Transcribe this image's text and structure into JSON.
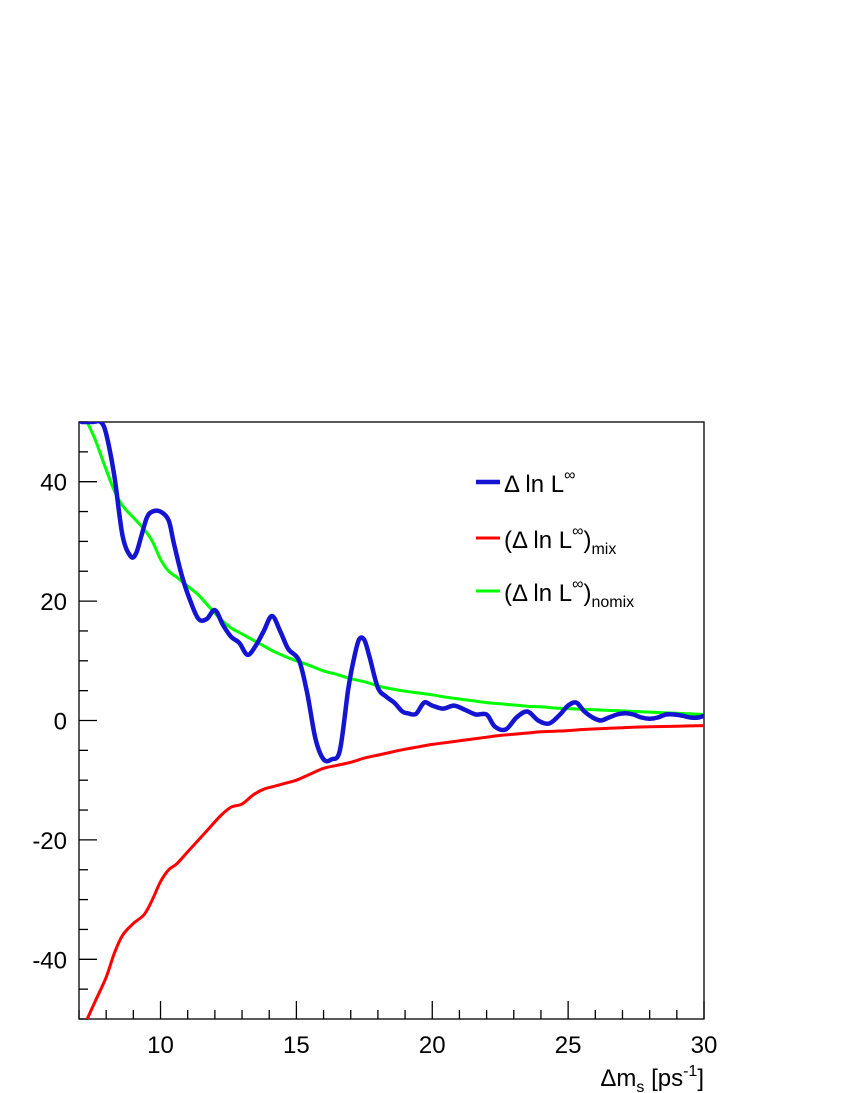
{
  "chart_data": {
    "type": "line",
    "title": "",
    "xlabel": "Δm",
    "xlabel_sub": "s",
    "xlabel_unit_open": " [ps",
    "xlabel_unit_sup": "-1",
    "xlabel_unit_close": "]",
    "ylabel": "",
    "xlim": [
      7,
      30
    ],
    "ylim": [
      -50,
      50
    ],
    "x_ticks": [
      10,
      15,
      20,
      25,
      30
    ],
    "y_ticks": [
      -40,
      -20,
      0,
      20,
      40
    ],
    "grid": false,
    "legend_position": "top-right",
    "series": [
      {
        "name": "Δ ln L",
        "name_sup": "∞",
        "name_close": "",
        "name_sub": "",
        "color": "#1414d2",
        "x": [
          7.1,
          7.5,
          7.8,
          8.0,
          8.3,
          8.6,
          8.9,
          9.1,
          9.3,
          9.5,
          9.7,
          10.0,
          10.3,
          10.5,
          10.8,
          11.1,
          11.4,
          11.7,
          12.0,
          12.3,
          12.6,
          12.9,
          13.2,
          13.5,
          13.8,
          14.1,
          14.4,
          14.7,
          15.1,
          15.4,
          15.7,
          16.0,
          16.3,
          16.6,
          16.9,
          17.1,
          17.3,
          17.5,
          17.7,
          18.0,
          18.3,
          18.6,
          18.9,
          19.1,
          19.4,
          19.7,
          20.0,
          20.4,
          20.8,
          21.2,
          21.6,
          22.0,
          22.3,
          22.7,
          23.1,
          23.5,
          23.9,
          24.3,
          24.7,
          25.0,
          25.3,
          25.6,
          25.9,
          26.2,
          26.5,
          26.8,
          27.1,
          27.4,
          27.7,
          28.0,
          28.3,
          28.6,
          28.9,
          29.2,
          29.5,
          29.8,
          30.0
        ],
        "y": [
          50,
          50,
          50,
          48,
          41,
          31,
          27.5,
          28,
          31,
          34,
          35,
          35,
          33.5,
          29.5,
          24,
          20,
          17,
          17,
          18.5,
          16,
          14,
          13,
          11,
          12.5,
          15,
          17.5,
          15,
          12,
          10,
          4.5,
          -3,
          -6.5,
          -6.5,
          -5,
          5,
          10,
          13.5,
          13.5,
          10.5,
          5.5,
          4,
          3,
          1.5,
          1.2,
          1.1,
          3,
          2.5,
          2,
          2.5,
          1.8,
          1,
          1,
          -1,
          -1.5,
          0.5,
          1.5,
          0,
          -0.5,
          1,
          2.5,
          3,
          1.5,
          0.5,
          0,
          0.5,
          1,
          1.2,
          1,
          0.5,
          0.3,
          0.5,
          1,
          1,
          0.8,
          0.5,
          0.5,
          0.8
        ]
      },
      {
        "name": "(Δ ln L",
        "name_sup": "∞",
        "name_close": ")",
        "name_sub": "mix",
        "color": "#ff0000",
        "x": [
          7.3,
          7.6,
          8.0,
          8.3,
          8.6,
          9.0,
          9.4,
          9.7,
          10.0,
          10.3,
          10.6,
          11.0,
          11.4,
          11.8,
          12.2,
          12.6,
          13.0,
          13.4,
          13.8,
          14.2,
          14.6,
          15.0,
          15.5,
          16.0,
          16.5,
          17.0,
          17.5,
          18.0,
          18.5,
          19.0,
          19.5,
          20.0,
          20.5,
          21.0,
          21.5,
          22.0,
          22.5,
          23.0,
          23.5,
          24.0,
          24.5,
          25.0,
          25.5,
          26.0,
          26.5,
          27.0,
          27.5,
          28.0,
          28.5,
          29.0,
          29.5,
          30.0
        ],
        "y": [
          -50,
          -47,
          -43,
          -39,
          -36,
          -34,
          -32.5,
          -30,
          -27,
          -25,
          -24,
          -22,
          -20,
          -18,
          -16,
          -14.5,
          -14,
          -12.5,
          -11.5,
          -11,
          -10.5,
          -10,
          -9,
          -8,
          -7.5,
          -7,
          -6.3,
          -5.8,
          -5.3,
          -4.8,
          -4.4,
          -4,
          -3.7,
          -3.4,
          -3.1,
          -2.8,
          -2.5,
          -2.3,
          -2.1,
          -1.9,
          -1.8,
          -1.7,
          -1.5,
          -1.4,
          -1.3,
          -1.2,
          -1.1,
          -1.05,
          -1.0,
          -0.95,
          -0.9,
          -0.85
        ]
      },
      {
        "name": "(Δ ln L",
        "name_sup": "∞",
        "name_close": ")",
        "name_sub": "nomix",
        "color": "#00ff00",
        "x": [
          7.3,
          7.6,
          8.0,
          8.3,
          8.6,
          9.0,
          9.4,
          9.7,
          10.0,
          10.3,
          10.6,
          11.0,
          11.4,
          11.8,
          12.2,
          12.6,
          13.0,
          13.4,
          13.8,
          14.2,
          14.6,
          15.0,
          15.5,
          16.0,
          16.5,
          17.0,
          17.5,
          18.0,
          18.5,
          19.0,
          19.5,
          20.0,
          20.5,
          21.0,
          21.5,
          22.0,
          22.5,
          23.0,
          23.5,
          24.0,
          24.5,
          25.0,
          25.5,
          26.0,
          26.5,
          27.0,
          27.5,
          28.0,
          28.5,
          29.0,
          29.5,
          30.0
        ],
        "y": [
          50,
          47,
          42,
          38.5,
          36,
          34,
          32,
          30,
          27,
          25,
          24,
          22.5,
          21,
          19,
          17,
          15.5,
          14.5,
          13.5,
          12.5,
          11.5,
          10.7,
          10,
          9.2,
          8.3,
          7.7,
          7,
          6.5,
          5.8,
          5.3,
          4.9,
          4.6,
          4.3,
          3.9,
          3.6,
          3.3,
          3.0,
          2.8,
          2.6,
          2.4,
          2.3,
          2.1,
          2.0,
          1.9,
          1.8,
          1.7,
          1.6,
          1.5,
          1.4,
          1.3,
          1.2,
          1.1,
          1.0
        ]
      }
    ]
  }
}
